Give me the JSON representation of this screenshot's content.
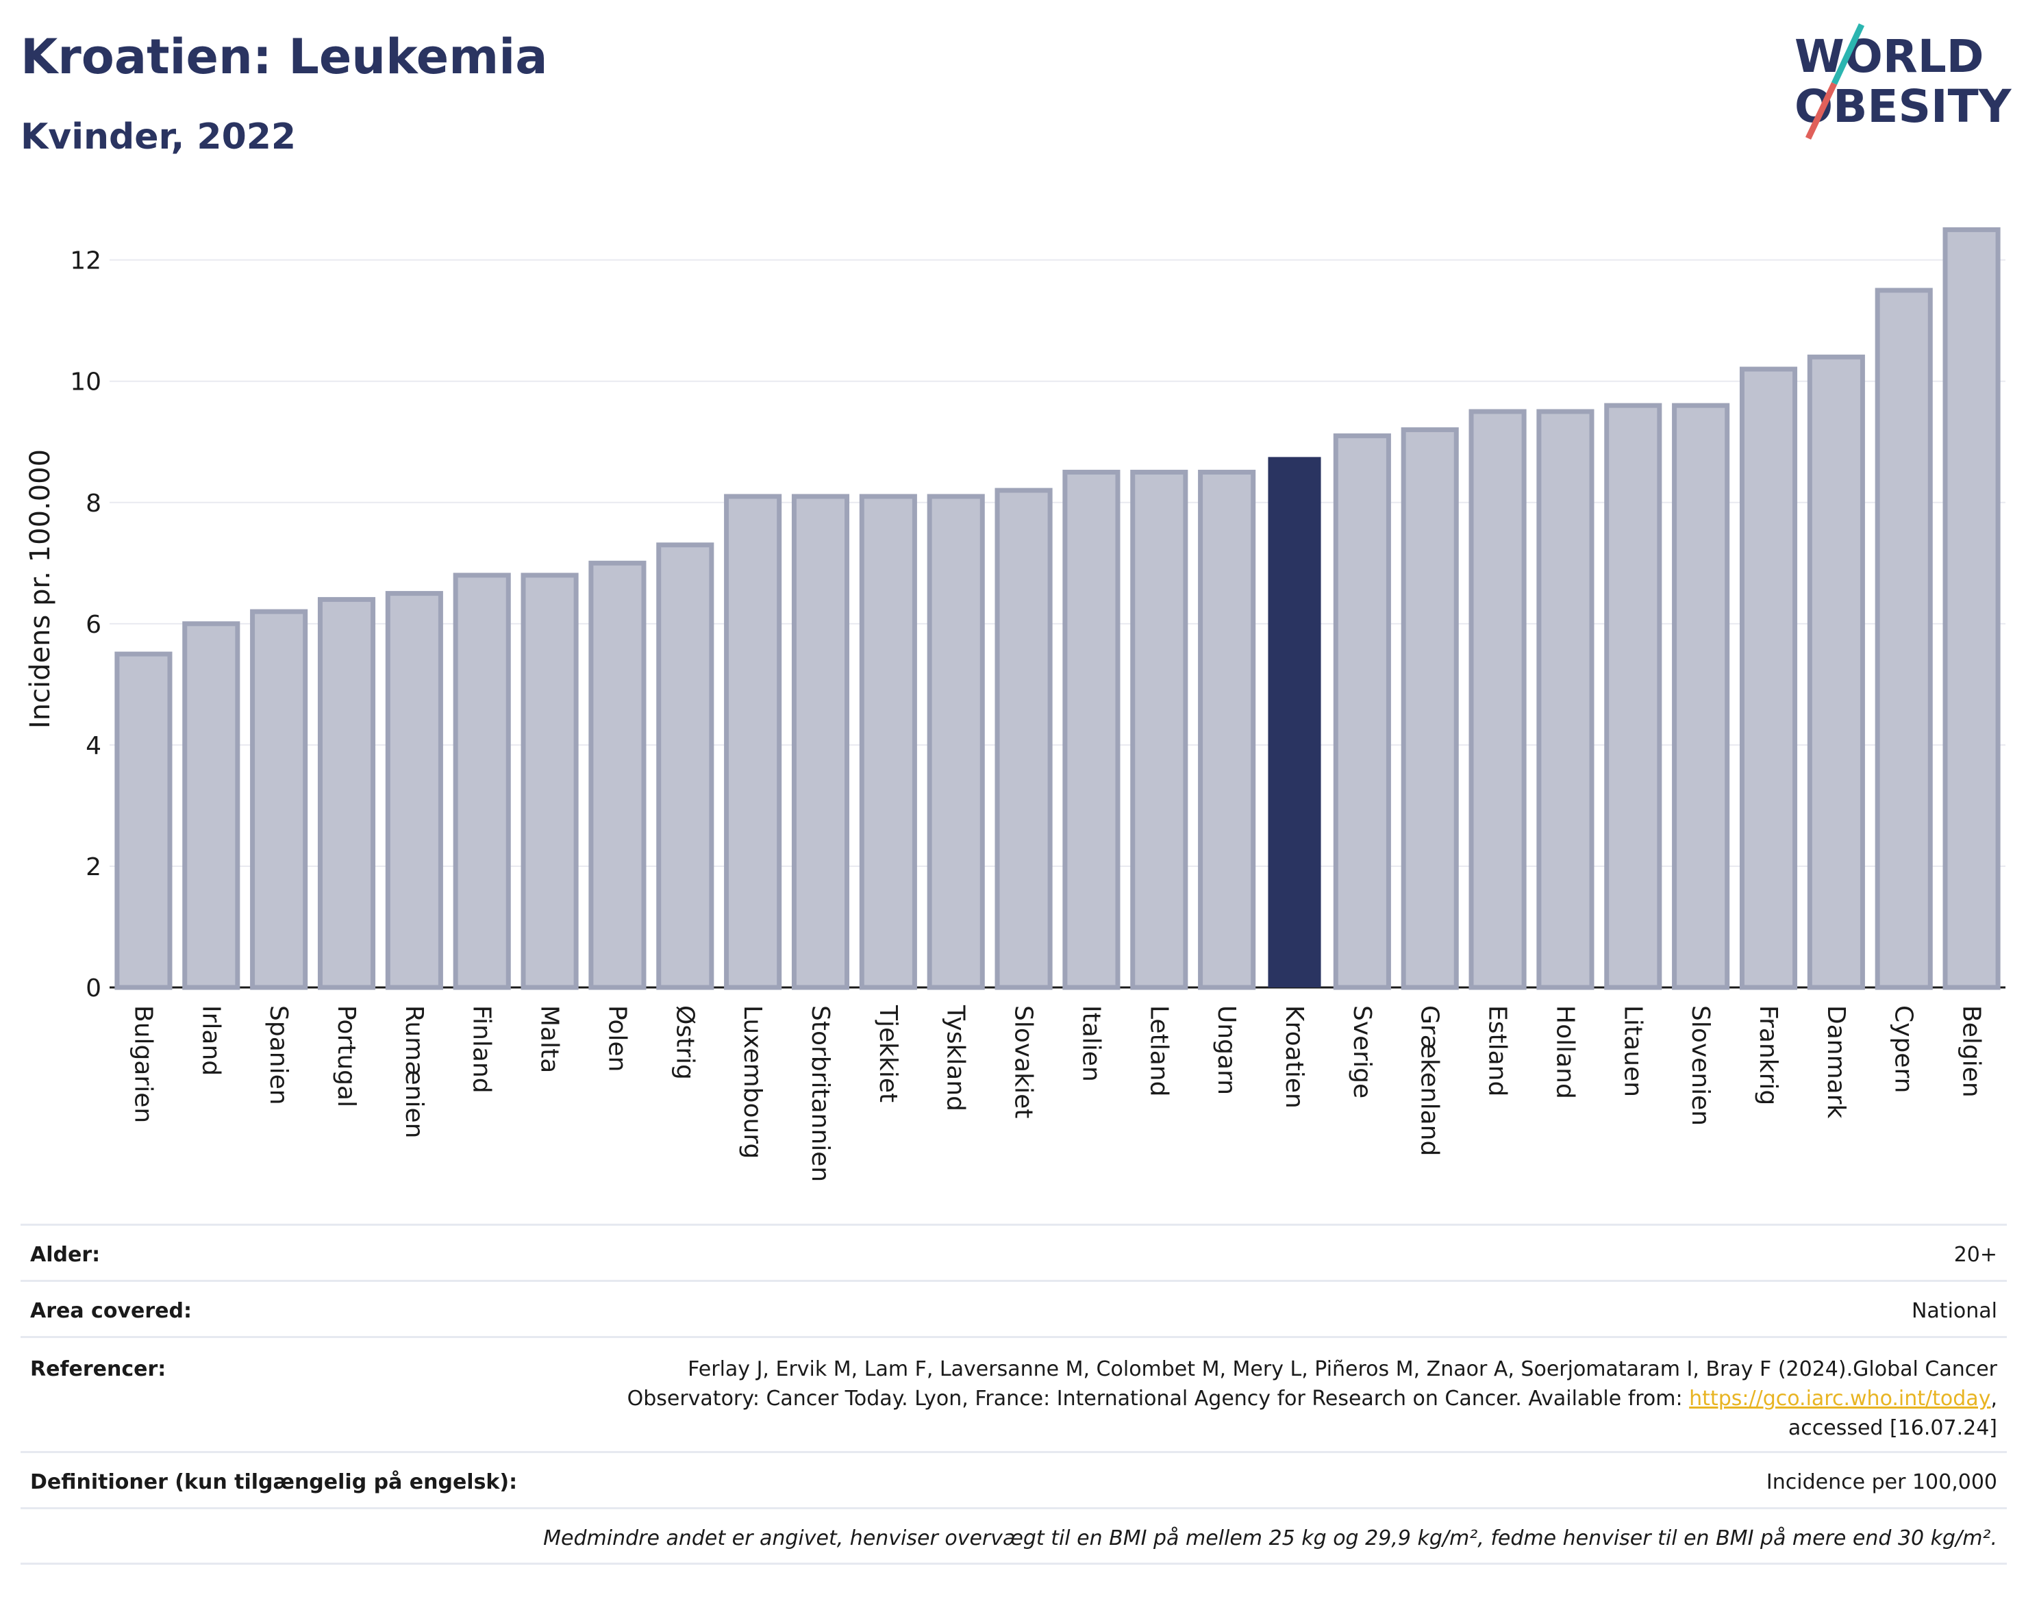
{
  "header": {
    "title": "Kroatien: Leukemia",
    "subtitle": "Kvinder, 2022"
  },
  "logo": {
    "line1": "WORLD",
    "line2": "OBESITY"
  },
  "colors": {
    "bar": "#bfc2d0",
    "bar_outline": "#9ea3b8",
    "highlight": "#2a3461",
    "logo_slash_teal": "#2bb5b0",
    "logo_slash_red": "#e0605a",
    "link": "#e8b422"
  },
  "chart_data": {
    "type": "bar",
    "categories": [
      "Bulgarien",
      "Irland",
      "Spanien",
      "Portugal",
      "Rumænien",
      "Finland",
      "Malta",
      "Polen",
      "Østrig",
      "Luxembourg",
      "Storbritannien",
      "Tjekkiet",
      "Tyskland",
      "Slovakiet",
      "Italien",
      "Letland",
      "Ungarn",
      "Kroatien",
      "Sverige",
      "Grækenland",
      "Estland",
      "Holland",
      "Litauen",
      "Slovenien",
      "Frankrig",
      "Danmark",
      "Cypern",
      "Belgien"
    ],
    "values": [
      5.5,
      6.0,
      6.2,
      6.4,
      6.5,
      6.8,
      6.8,
      7.0,
      7.3,
      8.1,
      8.1,
      8.1,
      8.1,
      8.2,
      8.5,
      8.5,
      8.5,
      8.75,
      9.1,
      9.2,
      9.5,
      9.5,
      9.6,
      9.6,
      10.2,
      10.4,
      11.5,
      12.5
    ],
    "highlight": "Kroatien",
    "ylabel": "Incidens pr. 100.000",
    "xlabel": "",
    "ylim": [
      0,
      12.9
    ],
    "yticks": [
      0,
      2,
      4,
      6,
      8,
      10,
      12
    ],
    "grid": true
  },
  "info": {
    "age_label": "Alder:",
    "age_value": "20+",
    "area_label": "Area covered:",
    "area_value": "National",
    "refs_label": "Referencer:",
    "refs_text": "Ferlay J, Ervik M, Lam F, Laversanne M, Colombet M, Mery L, Piñeros M, Znaor A, Soerjomataram I, Bray F (2024).Global Cancer Observatory: Cancer Today. Lyon, France: International Agency for Research on Cancer. Available from: ",
    "refs_link": "https://gco.iarc.who.int/today",
    "refs_tail": ", accessed [16.07.24]",
    "def_label": "Definitioner (kun tilgængelig på engelsk):",
    "def_value": "Incidence per 100,000",
    "note": "Medmindre andet er angivet, henviser overvægt til en BMI på mellem 25 kg og 29,9 kg/m², fedme henviser til en BMI på mere end 30 kg/m²."
  }
}
